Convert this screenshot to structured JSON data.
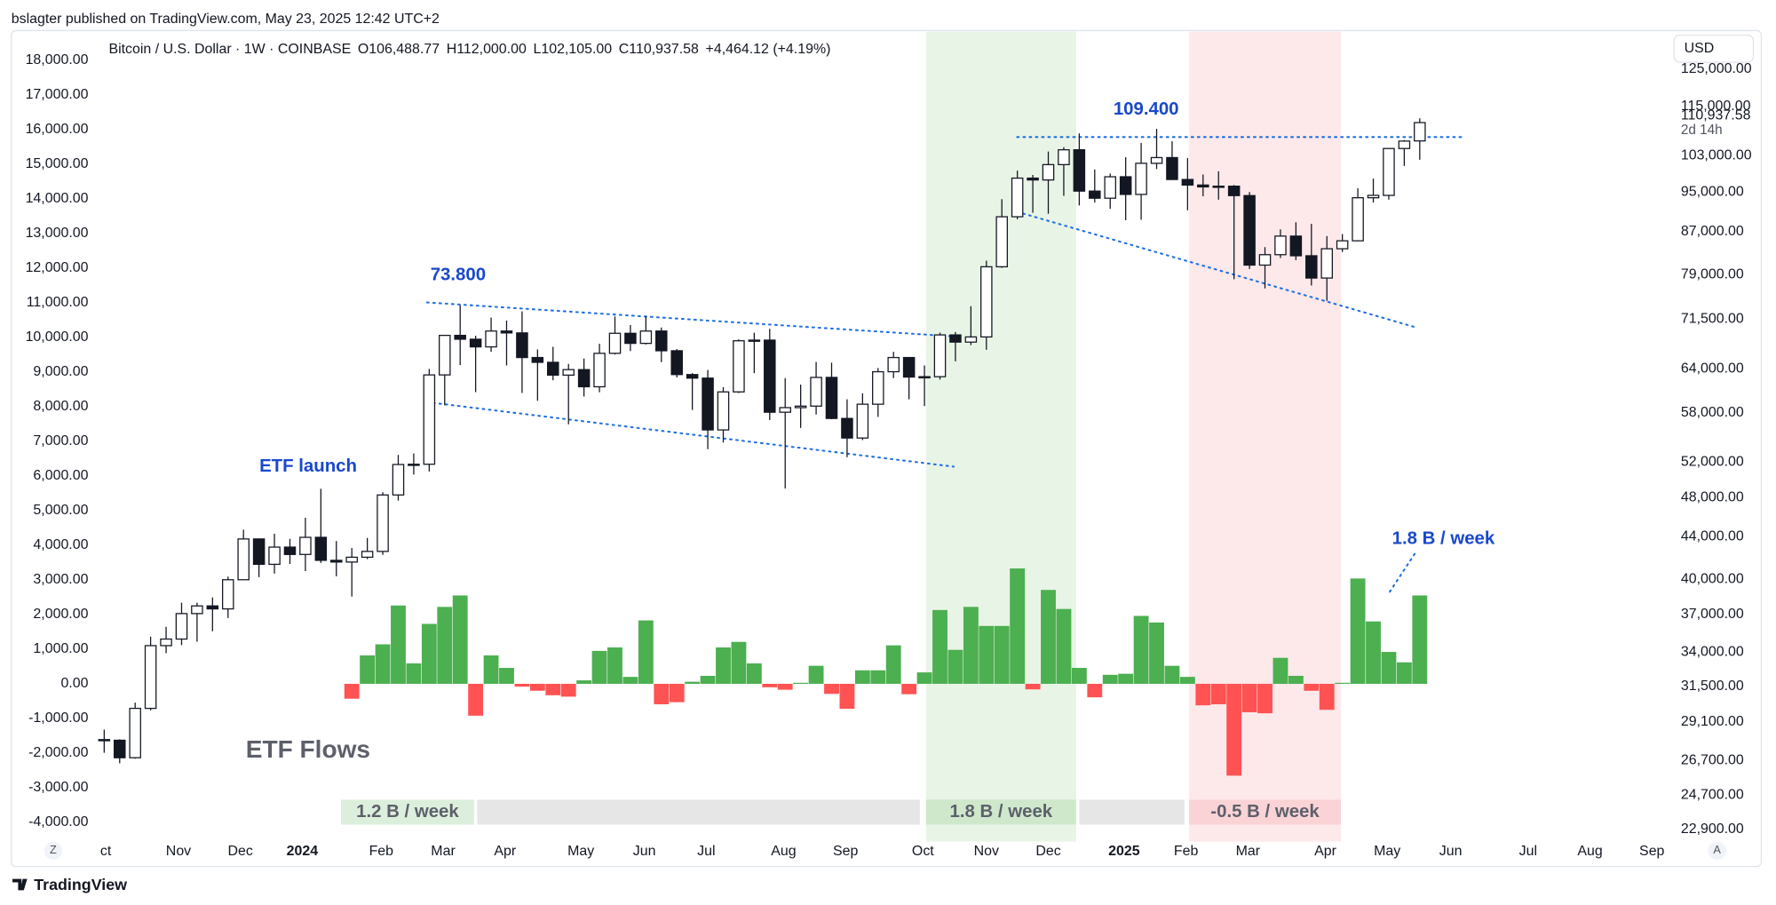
{
  "header": {
    "published": "bslagter published on TradingView.com, May 23, 2025 12:42 UTC+2",
    "brand": "TradingView",
    "currency": "USD"
  },
  "chart_data": {
    "type": "candlestick",
    "legend": {
      "open": "O106,488.77",
      "high": "H112,000.00",
      "low": "L102,105.00",
      "close": "C110,937.58",
      "change": "+4,464.12 (+4.19%)"
    },
    "last_price_label": "110,937.58",
    "countdown": "2d 14h",
    "annotations": [
      "73.800",
      "109.400",
      "ETF launch",
      "1.8 B / week"
    ],
    "period_labels": [
      "1.2 B / week",
      "1.8 B / week",
      "-0.5 B / week"
    ],
    "axis_buttons": [
      "Z",
      "A"
    ],
    "grid": false,
    "xlim": [
      -6,
      100.7
    ],
    "xticks": [
      {
        "value": 0.1,
        "label": "ct"
      },
      {
        "value": 4.8,
        "label": "Nov"
      },
      {
        "value": 8.8,
        "label": "Dec"
      },
      {
        "value": 12.8,
        "label": "2024"
      },
      {
        "value": 17.9,
        "label": "Feb"
      },
      {
        "value": 21.9,
        "label": "Mar"
      },
      {
        "value": 25.9,
        "label": "Apr"
      },
      {
        "value": 30.8,
        "label": "May"
      },
      {
        "value": 34.9,
        "label": "Jun"
      },
      {
        "value": 38.9,
        "label": "Jul"
      },
      {
        "value": 43.9,
        "label": "Aug"
      },
      {
        "value": 47.9,
        "label": "Sep"
      },
      {
        "value": 52.9,
        "label": "Oct"
      },
      {
        "value": 57.0,
        "label": "Nov"
      },
      {
        "value": 61.0,
        "label": "Dec"
      },
      {
        "value": 65.9,
        "label": "2025"
      },
      {
        "value": 69.9,
        "label": "Feb"
      },
      {
        "value": 73.9,
        "label": "Mar"
      },
      {
        "value": 78.9,
        "label": "Apr"
      },
      {
        "value": 82.9,
        "label": "May"
      },
      {
        "value": 87.0,
        "label": "Jun"
      },
      {
        "value": 92.0,
        "label": "Jul"
      },
      {
        "value": 96.0,
        "label": "Aug"
      },
      {
        "value": 100.0,
        "label": "Sep"
      }
    ],
    "ylim": [
      -4520,
      18820
    ],
    "yticks": [
      {
        "value": 18000,
        "label": "18,000.00"
      },
      {
        "value": 17000,
        "label": "17,000.00"
      },
      {
        "value": 16000,
        "label": "16,000.00"
      },
      {
        "value": 15000,
        "label": "15,000.00"
      },
      {
        "value": 14000,
        "label": "14,000.00"
      },
      {
        "value": 13000,
        "label": "13,000.00"
      },
      {
        "value": 12000,
        "label": "12,000.00"
      },
      {
        "value": 11000,
        "label": "11,000.00"
      },
      {
        "value": 10000,
        "label": "10,000.00"
      },
      {
        "value": 9000,
        "label": "9,000.00"
      },
      {
        "value": 8000,
        "label": "8,000.00"
      },
      {
        "value": 7000,
        "label": "7,000.00"
      },
      {
        "value": 6000,
        "label": "6,000.00"
      },
      {
        "value": 5000,
        "label": "5,000.00"
      },
      {
        "value": 4000,
        "label": "4,000.00"
      },
      {
        "value": 3000,
        "label": "3,000.00"
      },
      {
        "value": 2000,
        "label": "2,000.00"
      },
      {
        "value": 1000,
        "label": "1,000.00"
      },
      {
        "value": 0,
        "label": "0.00"
      },
      {
        "value": -1000,
        "label": "-1,000.00"
      },
      {
        "value": -2000,
        "label": "-2,000.00"
      },
      {
        "value": -3000,
        "label": "-3,000.00"
      },
      {
        "value": -4000,
        "label": "-4,000.00"
      }
    ],
    "y2log": true,
    "y2lim": [
      22330,
      135900
    ],
    "y2ticks": [
      {
        "value": 125000,
        "label": "125,000.00"
      },
      {
        "value": 115000,
        "label": "115,000.00"
      },
      {
        "value": 103000,
        "label": "103,000.00"
      },
      {
        "value": 95000,
        "label": "95,000.00"
      },
      {
        "value": 87000,
        "label": "87,000.00"
      },
      {
        "value": 79000,
        "label": "79,000.00"
      },
      {
        "value": 71500,
        "label": "71,500.00"
      },
      {
        "value": 64000,
        "label": "64,000.00"
      },
      {
        "value": 58000,
        "label": "58,000.00"
      },
      {
        "value": 52000,
        "label": "52,000.00"
      },
      {
        "value": 48000,
        "label": "48,000.00"
      },
      {
        "value": 44000,
        "label": "44,000.00"
      },
      {
        "value": 40000,
        "label": "40,000.00"
      },
      {
        "value": 37000,
        "label": "37,000.00"
      },
      {
        "value": 34000,
        "label": "34,000.00"
      },
      {
        "value": 31500,
        "label": "31,500.00"
      },
      {
        "value": 29100,
        "label": "29,100.00"
      },
      {
        "value": 26700,
        "label": "26,700.00"
      },
      {
        "value": 24700,
        "label": "24,700.00"
      },
      {
        "value": 22900,
        "label": "22,900.00"
      }
    ],
    "series": [
      {
        "name": "Bitcoin / U.S. Dollar · 1W · COINBASE",
        "type": "candlestick",
        "axis": "y2",
        "up_color": "#ffffff",
        "down_color": "#131722",
        "open": [
          27970,
          27930,
          26860,
          29990,
          34500,
          35010,
          37060,
          37700,
          37450,
          39970,
          43780,
          41370,
          42990,
          42290,
          43940,
          41740,
          41580,
          42030,
          42580,
          48300,
          51700,
          51730,
          63150,
          68980,
          68390,
          67230,
          69650,
          69360,
          65650,
          64950,
          63120,
          63900,
          61500,
          66270,
          69300,
          67760,
          69650,
          66650,
          63200,
          62700,
          55850,
          60800,
          68150,
          68250,
          58100,
          58700,
          58900,
          62800,
          57300,
          54850,
          59150,
          63600,
          65650,
          62850,
          62900,
          69050,
          67950,
          68740,
          80400,
          89900,
          98000,
          97600,
          101000,
          104400,
          95200,
          93700,
          98300,
          94500,
          101300,
          102600,
          97700,
          96500,
          96100,
          96250,
          94250,
          80700,
          82600,
          86100,
          82400,
          78400,
          83700,
          85200,
          93800,
          94300,
          104700,
          106488.77
        ],
        "high": [
          28600,
          27990,
          30380,
          35200,
          35980,
          37970,
          37970,
          38420,
          40250,
          44700,
          43780,
          44300,
          43790,
          45900,
          48970,
          43580,
          42900,
          43880,
          48590,
          52820,
          52990,
          64000,
          69000,
          73800,
          68920,
          71770,
          71300,
          72780,
          66850,
          67240,
          64720,
          65500,
          67700,
          71950,
          70600,
          71990,
          70200,
          66900,
          63400,
          63850,
          61450,
          68380,
          69400,
          70000,
          62700,
          61800,
          65000,
          64900,
          59800,
          60600,
          64130,
          66500,
          65650,
          64500,
          69400,
          69500,
          73620,
          81500,
          93500,
          99650,
          98700,
          104000,
          105000,
          108300,
          99900,
          99000,
          102700,
          106000,
          109400,
          106400,
          102500,
          98800,
          99500,
          96500,
          95000,
          84000,
          87400,
          88800,
          88500,
          86100,
          86500,
          95800,
          97900,
          104800,
          106700,
          112000
        ],
        "low": [
          27160,
          26530,
          26800,
          29860,
          33920,
          34540,
          34800,
          35630,
          36700,
          39970,
          40200,
          40520,
          41400,
          40750,
          41500,
          40280,
          38500,
          41850,
          42250,
          47700,
          50550,
          50900,
          59000,
          64550,
          60770,
          66500,
          64500,
          60660,
          59600,
          62400,
          56550,
          60180,
          60750,
          66100,
          66600,
          67600,
          64980,
          62800,
          58400,
          53500,
          54300,
          60650,
          63400,
          57100,
          49000,
          56100,
          57800,
          57200,
          52550,
          54600,
          57500,
          62700,
          59800,
          58900,
          62500,
          65100,
          67500,
          66800,
          80200,
          89400,
          90700,
          90500,
          94200,
          92200,
          92800,
          91500,
          89200,
          89300,
          100000,
          97800,
          91200,
          94100,
          93400,
          78200,
          80000,
          76600,
          82000,
          81600,
          77100,
          74500,
          83100,
          85100,
          92800,
          93400,
          100700,
          102105
        ],
        "close": [
          27930,
          26860,
          29990,
          34500,
          35010,
          37060,
          37700,
          37450,
          39970,
          43780,
          41370,
          42990,
          42290,
          43940,
          41740,
          41580,
          42030,
          42580,
          48300,
          51700,
          51730,
          63150,
          68980,
          68390,
          67230,
          69650,
          69360,
          65650,
          64950,
          63120,
          63900,
          61500,
          66270,
          69300,
          67760,
          69650,
          66650,
          63200,
          62700,
          55850,
          60800,
          68150,
          68250,
          58100,
          58700,
          58900,
          62800,
          57300,
          54850,
          59150,
          63600,
          65650,
          62850,
          62900,
          69050,
          67950,
          68740,
          80400,
          89900,
          98000,
          97600,
          101000,
          104400,
          95200,
          93700,
          98300,
          94500,
          101300,
          102600,
          97700,
          96500,
          96100,
          96250,
          94250,
          80700,
          82600,
          86100,
          82400,
          78400,
          83700,
          85200,
          93800,
          94300,
          104700,
          106450,
          110937.58
        ]
      },
      {
        "name": "ETF Flows",
        "type": "bar",
        "axis": "y",
        "color": "#4caf50",
        "negative_color": "#ff5252",
        "values": [
          null,
          null,
          null,
          null,
          null,
          null,
          null,
          null,
          null,
          null,
          null,
          null,
          null,
          null,
          null,
          null,
          -430,
          820,
          1140,
          2260,
          590,
          1730,
          2220,
          2550,
          -920,
          820,
          460,
          -80,
          -200,
          -330,
          -370,
          100,
          950,
          1050,
          200,
          1830,
          -590,
          -530,
          60,
          230,
          1050,
          1210,
          590,
          -100,
          -170,
          30,
          520,
          -290,
          -720,
          390,
          390,
          1110,
          -300,
          330,
          2130,
          980,
          2220,
          1670,
          1670,
          3330,
          -160,
          2710,
          2160,
          460,
          -390,
          260,
          290,
          1960,
          1770,
          520,
          200,
          -620,
          -590,
          -2650,
          -820,
          -850,
          750,
          230,
          -200,
          -750,
          30,
          3040,
          1800,
          920,
          620,
          2550
        ]
      }
    ]
  }
}
